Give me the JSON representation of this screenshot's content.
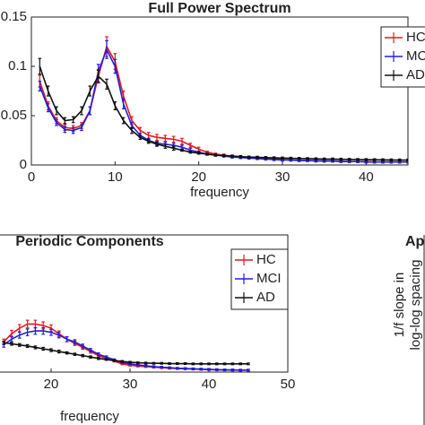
{
  "chart_data": [
    {
      "type": "line",
      "title": "Full Power Spectrum",
      "xlabel": "frequency",
      "x": [
        1,
        2,
        3,
        4,
        5,
        6,
        7,
        8,
        9,
        10,
        11,
        12,
        13,
        14,
        15,
        16,
        17,
        18,
        19,
        20,
        21,
        22,
        23,
        24,
        25,
        26,
        27,
        28,
        29,
        30,
        31,
        32,
        33,
        34,
        35,
        36,
        37,
        38,
        39,
        40,
        41,
        42,
        43,
        44,
        45
      ],
      "xlim": [
        0,
        45
      ],
      "xticks": [
        0,
        10,
        20,
        30,
        40
      ],
      "ylim": [
        0,
        0.15
      ],
      "yticks": [
        0,
        0.05,
        0.1,
        0.15
      ],
      "legend": "upper right",
      "series": [
        {
          "name": "HC",
          "color": "#e41a1c",
          "values": [
            0.085,
            0.06,
            0.045,
            0.038,
            0.037,
            0.04,
            0.055,
            0.09,
            0.12,
            0.105,
            0.07,
            0.045,
            0.035,
            0.03,
            0.028,
            0.027,
            0.026,
            0.024,
            0.02,
            0.016,
            0.013,
            0.011,
            0.01,
            0.009,
            0.008,
            0.0075,
            0.007,
            0.0065,
            0.006,
            0.0055,
            0.005,
            0.005,
            0.0045,
            0.0045,
            0.004,
            0.004,
            0.004,
            0.0035,
            0.0035,
            0.0035,
            0.003,
            0.003,
            0.003,
            0.003,
            0.003
          ],
          "errors": [
            0.006,
            0.004,
            0.003,
            0.003,
            0.003,
            0.003,
            0.004,
            0.007,
            0.01,
            0.008,
            0.005,
            0.004,
            0.003,
            0.003,
            0.003,
            0.003,
            0.003,
            0.003,
            0.002,
            0.002,
            0.001,
            0.001,
            0.001,
            0.001,
            0.001,
            0.001,
            0.001,
            0.001,
            0.001,
            0.001,
            0.001,
            0.001,
            0.001,
            0.001,
            0.001,
            0.001,
            0.001,
            0.001,
            0.001,
            0.001,
            0.001,
            0.001,
            0.001,
            0.001,
            0.001
          ]
        },
        {
          "name": "MCI",
          "color": "#1f1fd6",
          "values": [
            0.08,
            0.058,
            0.043,
            0.036,
            0.035,
            0.038,
            0.055,
            0.095,
            0.117,
            0.1,
            0.062,
            0.04,
            0.03,
            0.025,
            0.022,
            0.021,
            0.02,
            0.018,
            0.015,
            0.013,
            0.011,
            0.01,
            0.009,
            0.008,
            0.0075,
            0.007,
            0.0065,
            0.006,
            0.0055,
            0.005,
            0.005,
            0.0045,
            0.0045,
            0.004,
            0.004,
            0.004,
            0.0035,
            0.0035,
            0.0035,
            0.003,
            0.003,
            0.003,
            0.003,
            0.003,
            0.003
          ],
          "errors": [
            0.005,
            0.004,
            0.003,
            0.003,
            0.003,
            0.003,
            0.004,
            0.007,
            0.009,
            0.007,
            0.005,
            0.003,
            0.002,
            0.002,
            0.002,
            0.002,
            0.002,
            0.002,
            0.002,
            0.001,
            0.001,
            0.001,
            0.001,
            0.001,
            0.001,
            0.001,
            0.001,
            0.001,
            0.001,
            0.001,
            0.001,
            0.001,
            0.001,
            0.001,
            0.001,
            0.001,
            0.001,
            0.001,
            0.001,
            0.001,
            0.001,
            0.001,
            0.001,
            0.001,
            0.001
          ]
        },
        {
          "name": "AD",
          "color": "#111111",
          "values": [
            0.1,
            0.075,
            0.055,
            0.045,
            0.046,
            0.055,
            0.075,
            0.09,
            0.082,
            0.06,
            0.045,
            0.035,
            0.028,
            0.024,
            0.021,
            0.019,
            0.017,
            0.015,
            0.013,
            0.012,
            0.011,
            0.01,
            0.0095,
            0.009,
            0.0085,
            0.008,
            0.0078,
            0.0075,
            0.0072,
            0.007,
            0.0068,
            0.0066,
            0.0064,
            0.0062,
            0.006,
            0.006,
            0.0058,
            0.0056,
            0.0055,
            0.0054,
            0.0053,
            0.0052,
            0.0051,
            0.005,
            0.005
          ],
          "errors": [
            0.008,
            0.005,
            0.004,
            0.003,
            0.003,
            0.004,
            0.005,
            0.006,
            0.005,
            0.004,
            0.003,
            0.003,
            0.002,
            0.002,
            0.002,
            0.002,
            0.002,
            0.001,
            0.001,
            0.001,
            0.001,
            0.001,
            0.001,
            0.001,
            0.001,
            0.001,
            0.001,
            0.001,
            0.001,
            0.001,
            0.001,
            0.001,
            0.001,
            0.001,
            0.001,
            0.001,
            0.001,
            0.001,
            0.001,
            0.001,
            0.001,
            0.001,
            0.001,
            0.001,
            0.001
          ]
        }
      ]
    },
    {
      "type": "line",
      "title": "Periodic Components",
      "xlabel": "frequency",
      "x": [
        14,
        15,
        16,
        17,
        18,
        19,
        20,
        21,
        22,
        23,
        24,
        25,
        26,
        27,
        28,
        29,
        30,
        31,
        32,
        33,
        34,
        35,
        36,
        37,
        38,
        39,
        40,
        41,
        42,
        43,
        44,
        45
      ],
      "xlim": [
        0,
        50
      ],
      "xticks": [
        20,
        30,
        40,
        50
      ],
      "ylim": [
        0,
        0.05
      ],
      "legend": "upper right",
      "series": [
        {
          "name": "HC",
          "color": "#e41a1c",
          "values": [
            0.011,
            0.014,
            0.016,
            0.0175,
            0.0175,
            0.017,
            0.016,
            0.014,
            0.012,
            0.0105,
            0.009,
            0.0075,
            0.006,
            0.005,
            0.004,
            0.003,
            0.0025,
            0.0022,
            0.002,
            0.0018,
            0.0016,
            0.0014,
            0.0013,
            0.0012,
            0.0011,
            0.001,
            0.0009,
            0.0008,
            0.0008,
            0.0007,
            0.0007,
            0.0007
          ],
          "errors": [
            0.001,
            0.0012,
            0.0013,
            0.0014,
            0.0014,
            0.0013,
            0.0012,
            0.001,
            0.0009,
            0.0008,
            0.0007,
            0.0006,
            0.0005,
            0.0004,
            0.0003,
            0.0003,
            0.0003,
            0.0003,
            0.0003,
            0.0003,
            0.0003,
            0.0003,
            0.0003,
            0.0003,
            0.0003,
            0.0003,
            0.0003,
            0.0003,
            0.0003,
            0.0003,
            0.0003,
            0.0003
          ]
        },
        {
          "name": "MCI",
          "color": "#1f1fd6",
          "values": [
            0.01,
            0.012,
            0.0135,
            0.0145,
            0.015,
            0.015,
            0.0145,
            0.0135,
            0.012,
            0.011,
            0.0095,
            0.008,
            0.0065,
            0.0055,
            0.0045,
            0.0035,
            0.003,
            0.0026,
            0.0023,
            0.002,
            0.0018,
            0.0016,
            0.0014,
            0.0013,
            0.0012,
            0.0011,
            0.001,
            0.0009,
            0.0008,
            0.0008,
            0.0007,
            0.0007
          ],
          "errors": [
            0.0009,
            0.001,
            0.0011,
            0.0012,
            0.0012,
            0.0012,
            0.0011,
            0.001,
            0.0009,
            0.0008,
            0.0007,
            0.0006,
            0.0005,
            0.0004,
            0.0003,
            0.0003,
            0.0003,
            0.0003,
            0.0003,
            0.0003,
            0.0003,
            0.0003,
            0.0003,
            0.0003,
            0.0003,
            0.0003,
            0.0003,
            0.0003,
            0.0003,
            0.0003,
            0.0003,
            0.0003
          ]
        },
        {
          "name": "AD",
          "color": "#111111",
          "values": [
            0.0107,
            0.0103,
            0.0099,
            0.0095,
            0.009,
            0.0085,
            0.008,
            0.0075,
            0.007,
            0.0065,
            0.006,
            0.0055,
            0.005,
            0.0046,
            0.0042,
            0.0039,
            0.0036,
            0.0034,
            0.0033,
            0.0032,
            0.0032,
            0.0031,
            0.0031,
            0.0031,
            0.003,
            0.003,
            0.003,
            0.003,
            0.003,
            0.003,
            0.003,
            0.003
          ],
          "errors": [
            0.0005,
            0.0005,
            0.0005,
            0.0005,
            0.0005,
            0.0005,
            0.0005,
            0.0005,
            0.0004,
            0.0004,
            0.0004,
            0.0004,
            0.0004,
            0.0003,
            0.0003,
            0.0003,
            0.0003,
            0.0003,
            0.0003,
            0.0003,
            0.0003,
            0.0003,
            0.0003,
            0.0003,
            0.0003,
            0.0003,
            0.0003,
            0.0003,
            0.0003,
            0.0003,
            0.0003,
            0.0003
          ]
        }
      ]
    },
    {
      "type": "axes",
      "title": "Ap",
      "ylabel": [
        "1/f slope in",
        "log-log spacing"
      ]
    }
  ]
}
